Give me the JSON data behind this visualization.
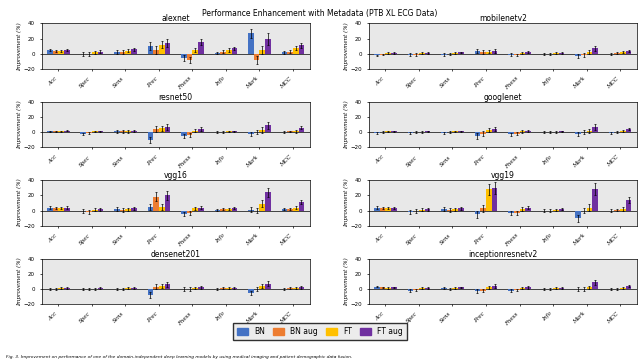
{
  "title": "Performance Enhancement with Metadata (PTB XL ECG Data)",
  "metrics": [
    "Acc",
    "Spec",
    "Sens",
    "Prec",
    "Fness",
    "Info",
    "Mark",
    "MCC"
  ],
  "models": [
    "alexnet",
    "mobilenetv2",
    "resnet50",
    "googlenet",
    "vgg16",
    "vgg19",
    "densenet201",
    "inceptionresnetv2"
  ],
  "colors": {
    "BN": "#4472c4",
    "BN_aug": "#ed7d31",
    "FT": "#ffc000",
    "FT_aug": "#7030a0"
  },
  "legend_labels": [
    "BN",
    "BN aug",
    "FT",
    "FT aug"
  ],
  "bar_width": 0.17,
  "ylabel": "Improvement (%)",
  "data": {
    "alexnet": {
      "BN": [
        5,
        0,
        2,
        10,
        -5,
        1,
        27,
        2
      ],
      "BN_aug": [
        4,
        0,
        2,
        5,
        -8,
        3,
        -8,
        3
      ],
      "FT": [
        4,
        2,
        4,
        12,
        5,
        5,
        5,
        8
      ],
      "FT_aug": [
        5,
        3,
        6,
        14,
        16,
        7,
        20,
        11
      ]
    },
    "mobilenetv2": {
      "BN": [
        -2,
        -1,
        -1,
        4,
        -1,
        0,
        -3,
        0
      ],
      "BN_aug": [
        -1,
        -1,
        0,
        2,
        -2,
        0,
        -2,
        1
      ],
      "FT": [
        1,
        1,
        1,
        3,
        1,
        1,
        2,
        2
      ],
      "FT_aug": [
        1,
        1,
        2,
        4,
        2,
        1,
        7,
        4
      ]
    },
    "resnet50": {
      "BN": [
        1,
        -2,
        1,
        -10,
        -5,
        0,
        -2,
        0
      ],
      "BN_aug": [
        1,
        -1,
        1,
        4,
        -4,
        0,
        0,
        1
      ],
      "FT": [
        1,
        1,
        1,
        5,
        2,
        1,
        3,
        1
      ],
      "FT_aug": [
        2,
        1,
        2,
        7,
        4,
        1,
        9,
        6
      ]
    },
    "googlenet": {
      "BN": [
        -1,
        -1,
        -1,
        -5,
        -3,
        0,
        -2,
        -1
      ],
      "BN_aug": [
        0,
        0,
        0,
        -2,
        -2,
        0,
        0,
        0
      ],
      "FT": [
        1,
        0,
        1,
        3,
        1,
        0,
        2,
        2
      ],
      "FT_aug": [
        1,
        1,
        1,
        4,
        2,
        1,
        7,
        4
      ]
    },
    "vgg16": {
      "BN": [
        4,
        -1,
        2,
        5,
        -4,
        1,
        1,
        2
      ],
      "BN_aug": [
        3,
        -2,
        1,
        18,
        -3,
        2,
        0,
        2
      ],
      "FT": [
        3,
        1,
        2,
        5,
        3,
        2,
        9,
        4
      ],
      "FT_aug": [
        4,
        2,
        3,
        20,
        4,
        3,
        24,
        11
      ]
    },
    "vgg19": {
      "BN": [
        4,
        -2,
        2,
        -5,
        -3,
        0,
        -10,
        0
      ],
      "BN_aug": [
        3,
        -1,
        1,
        3,
        -3,
        0,
        0,
        1
      ],
      "FT": [
        3,
        1,
        2,
        28,
        2,
        1,
        4,
        2
      ],
      "FT_aug": [
        3,
        2,
        3,
        30,
        4,
        2,
        28,
        14
      ]
    },
    "densenet201": {
      "BN": [
        0,
        0,
        0,
        -8,
        0,
        0,
        -5,
        0
      ],
      "BN_aug": [
        0,
        0,
        0,
        3,
        0,
        1,
        0,
        1
      ],
      "FT": [
        1,
        0,
        1,
        4,
        1,
        1,
        4,
        1
      ],
      "FT_aug": [
        1,
        1,
        1,
        6,
        2,
        1,
        7,
        2
      ]
    },
    "inceptionresnetv2": {
      "BN": [
        3,
        -2,
        1,
        -3,
        -2,
        0,
        0,
        0
      ],
      "BN_aug": [
        2,
        -1,
        0,
        -2,
        -1,
        0,
        0,
        0
      ],
      "FT": [
        1,
        1,
        1,
        2,
        1,
        1,
        2,
        1
      ],
      "FT_aug": [
        2,
        1,
        2,
        4,
        2,
        1,
        9,
        4
      ]
    }
  },
  "errors": {
    "alexnet": {
      "BN": [
        1.5,
        2.5,
        2.5,
        5,
        4,
        1.5,
        6,
        2
      ],
      "BN_aug": [
        1.5,
        2.5,
        2.5,
        5,
        4,
        1.5,
        5,
        2
      ],
      "FT": [
        1.5,
        2,
        2,
        5,
        3,
        2,
        5,
        2.5
      ],
      "FT_aug": [
        1.5,
        2,
        2,
        5,
        4,
        2,
        8,
        3
      ]
    },
    "mobilenetv2": {
      "BN": [
        1,
        1.5,
        1.5,
        2.5,
        1.5,
        1,
        2.5,
        1
      ],
      "BN_aug": [
        1,
        1.5,
        1.5,
        2.5,
        1.5,
        1,
        2.5,
        1
      ],
      "FT": [
        1,
        1,
        1,
        2.5,
        1.5,
        1,
        2.5,
        1.5
      ],
      "FT_aug": [
        1,
        1,
        1,
        2.5,
        1.5,
        1,
        3.5,
        1.5
      ]
    },
    "resnet50": {
      "BN": [
        1,
        1.5,
        1.5,
        4,
        2.5,
        1,
        2.5,
        1
      ],
      "BN_aug": [
        1,
        1.5,
        1.5,
        4,
        2.5,
        1,
        2.5,
        1
      ],
      "FT": [
        1,
        1,
        1.5,
        3,
        2,
        1,
        3.5,
        1.5
      ],
      "FT_aug": [
        1,
        1,
        1.5,
        4,
        2.5,
        1,
        4.5,
        2
      ]
    },
    "googlenet": {
      "BN": [
        1,
        1.5,
        1.5,
        3.5,
        2,
        1,
        2.5,
        1
      ],
      "BN_aug": [
        1,
        1.5,
        1.5,
        3.5,
        2,
        1,
        2.5,
        1
      ],
      "FT": [
        1,
        1,
        1,
        3,
        1.5,
        1,
        2.5,
        1.5
      ],
      "FT_aug": [
        1,
        1,
        1,
        3,
        1.5,
        1,
        3.5,
        1.5
      ]
    },
    "vgg16": {
      "BN": [
        1.5,
        2.5,
        2.5,
        4,
        2.5,
        1.5,
        3.5,
        1.5
      ],
      "BN_aug": [
        1.5,
        2.5,
        2.5,
        6,
        2.5,
        1.5,
        3.5,
        1.5
      ],
      "FT": [
        1.5,
        2,
        2,
        4,
        2,
        1.5,
        4.5,
        2.5
      ],
      "FT_aug": [
        1.5,
        2,
        2,
        6,
        2.5,
        1.5,
        6,
        2.5
      ]
    },
    "vgg19": {
      "BN": [
        1.5,
        2.5,
        2.5,
        4.5,
        2.5,
        1.5,
        4.5,
        1.5
      ],
      "BN_aug": [
        1.5,
        2.5,
        2.5,
        4.5,
        2.5,
        1.5,
        3.5,
        1.5
      ],
      "FT": [
        1.5,
        2,
        2,
        7,
        2.5,
        1.5,
        4.5,
        2.5
      ],
      "FT_aug": [
        1.5,
        2,
        2,
        8,
        2.5,
        1.5,
        8,
        3.5
      ]
    },
    "densenet201": {
      "BN": [
        1,
        1.5,
        1.5,
        3.5,
        2,
        1,
        2.5,
        1
      ],
      "BN_aug": [
        1,
        1.5,
        1.5,
        3.5,
        2,
        1,
        2.5,
        1
      ],
      "FT": [
        1,
        1,
        1,
        3,
        1.5,
        1,
        2.5,
        1.5
      ],
      "FT_aug": [
        1,
        1,
        1,
        3.5,
        1.5,
        1,
        3.5,
        1.5
      ]
    },
    "inceptionresnetv2": {
      "BN": [
        1,
        1.5,
        1.5,
        2.5,
        1.5,
        1,
        2.5,
        1
      ],
      "BN_aug": [
        1,
        1.5,
        1.5,
        2.5,
        1.5,
        1,
        2.5,
        1
      ],
      "FT": [
        1,
        1,
        1,
        2.5,
        1.5,
        1,
        2.5,
        1.5
      ],
      "FT_aug": [
        1,
        1,
        1,
        2.5,
        1.5,
        1,
        3.5,
        1.5
      ]
    }
  },
  "ylim": [
    -20,
    40
  ],
  "yticks": [
    -20,
    0,
    20,
    40
  ],
  "bg_color": "#e8e8e8"
}
